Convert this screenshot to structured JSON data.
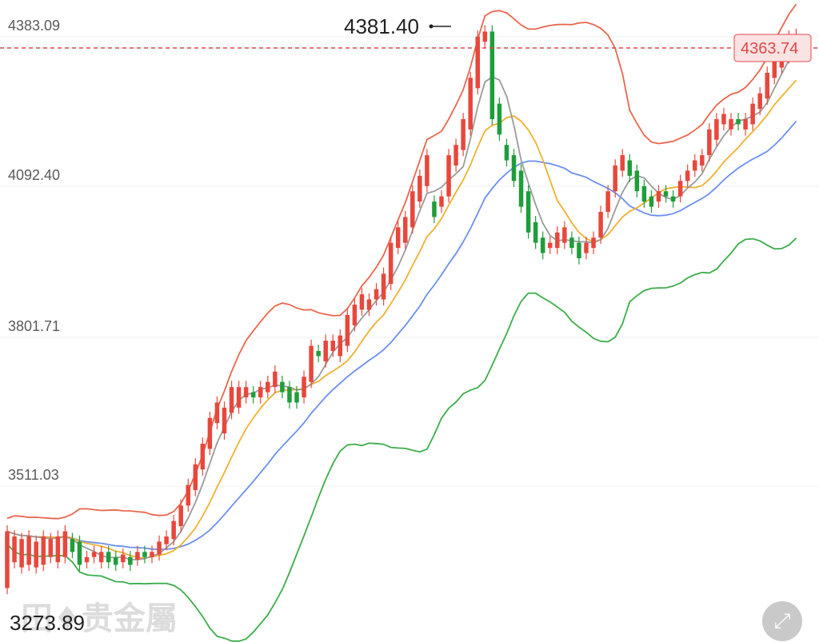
{
  "chart_data": {
    "type": "candlestick",
    "y_axis_ticks": [
      "4383.09",
      "4092.40",
      "3801.71",
      "3511.03",
      "3273.89"
    ],
    "current_price": "4363.74",
    "high_marker": "4381.40",
    "low_marker": "3273.89",
    "colors": {
      "up": "#e8473c",
      "down": "#1f9d3a",
      "bb_upper": "#e8674c",
      "bb_lower": "#3cad4a",
      "ma5": "#9a9a9a",
      "ma10": "#f0b030",
      "ma20": "#6b8ff0",
      "price_line": "#e04848"
    },
    "candles": [
      [
        3290,
        3400
      ],
      [
        3340,
        3390
      ],
      [
        3330,
        3385
      ],
      [
        3335,
        3390
      ],
      [
        3330,
        3380
      ],
      [
        3335,
        3390
      ],
      [
        3350,
        3385
      ],
      [
        3340,
        3390
      ],
      [
        3350,
        3400
      ],
      [
        3385,
        3360
      ],
      [
        3380,
        3335
      ],
      [
        3340,
        3350
      ],
      [
        3350,
        3360
      ],
      [
        3340,
        3360
      ],
      [
        3360,
        3340
      ],
      [
        3350,
        3335
      ],
      [
        3340,
        3355
      ],
      [
        3350,
        3335
      ],
      [
        3345,
        3360
      ],
      [
        3360,
        3350
      ],
      [
        3350,
        3360
      ],
      [
        3355,
        3380
      ],
      [
        3375,
        3390
      ],
      [
        3385,
        3420
      ],
      [
        3410,
        3450
      ],
      [
        3450,
        3490
      ],
      [
        3480,
        3530
      ],
      [
        3520,
        3570
      ],
      [
        3560,
        3620
      ],
      [
        3610,
        3650
      ],
      [
        3590,
        3640
      ],
      [
        3630,
        3680
      ],
      [
        3640,
        3680
      ],
      [
        3660,
        3680
      ],
      [
        3670,
        3660
      ],
      [
        3660,
        3680
      ],
      [
        3670,
        3690
      ],
      [
        3680,
        3710
      ],
      [
        3690,
        3670
      ],
      [
        3680,
        3650
      ],
      [
        3670,
        3650
      ],
      [
        3660,
        3700
      ],
      [
        3690,
        3760
      ],
      [
        3750,
        3740
      ],
      [
        3730,
        3770
      ],
      [
        3750,
        3770
      ],
      [
        3740,
        3780
      ],
      [
        3760,
        3820
      ],
      [
        3800,
        3840
      ],
      [
        3830,
        3860
      ],
      [
        3830,
        3850
      ],
      [
        3850,
        3870
      ],
      [
        3850,
        3900
      ],
      [
        3880,
        3960
      ],
      [
        3950,
        3990
      ],
      [
        3960,
        4010
      ],
      [
        3990,
        4060
      ],
      [
        4040,
        4090
      ],
      [
        4070,
        4130
      ],
      [
        4040,
        4010
      ],
      [
        4030,
        4050
      ],
      [
        4050,
        4130
      ],
      [
        4110,
        4150
      ],
      [
        4140,
        4200
      ],
      [
        4180,
        4280
      ],
      [
        4260,
        4360
      ],
      [
        4350,
        4370
      ],
      [
        4370,
        4200
      ],
      [
        4230,
        4170
      ],
      [
        4150,
        4120
      ],
      [
        4130,
        4080
      ],
      [
        4100,
        4030
      ],
      [
        4060,
        3980
      ],
      [
        4000,
        3960
      ],
      [
        3970,
        3940
      ],
      [
        3950,
        3960
      ],
      [
        3950,
        3980
      ],
      [
        3960,
        3990
      ],
      [
        3970,
        3950
      ],
      [
        3960,
        3930
      ],
      [
        3940,
        3960
      ],
      [
        3950,
        3970
      ],
      [
        3970,
        4020
      ],
      [
        4020,
        4060
      ],
      [
        4060,
        4110
      ],
      [
        4100,
        4130
      ],
      [
        4120,
        4090
      ],
      [
        4100,
        4060
      ],
      [
        4070,
        4040
      ],
      [
        4050,
        4030
      ],
      [
        4040,
        4060
      ],
      [
        4060,
        4050
      ],
      [
        4050,
        4040
      ],
      [
        4050,
        4080
      ],
      [
        4080,
        4100
      ],
      [
        4100,
        4120
      ],
      [
        4110,
        4130
      ],
      [
        4130,
        4180
      ],
      [
        4160,
        4200
      ],
      [
        4190,
        4210
      ],
      [
        4180,
        4200
      ],
      [
        4200,
        4190
      ],
      [
        4180,
        4200
      ],
      [
        4190,
        4230
      ],
      [
        4220,
        4250
      ],
      [
        4240,
        4290
      ],
      [
        4280,
        4330
      ],
      [
        4300,
        4340
      ],
      [
        4320,
        4360
      ],
      [
        4350,
        4363.74
      ]
    ]
  },
  "watermark": "田♦贵金屬",
  "expand_icon": "expand-icon"
}
